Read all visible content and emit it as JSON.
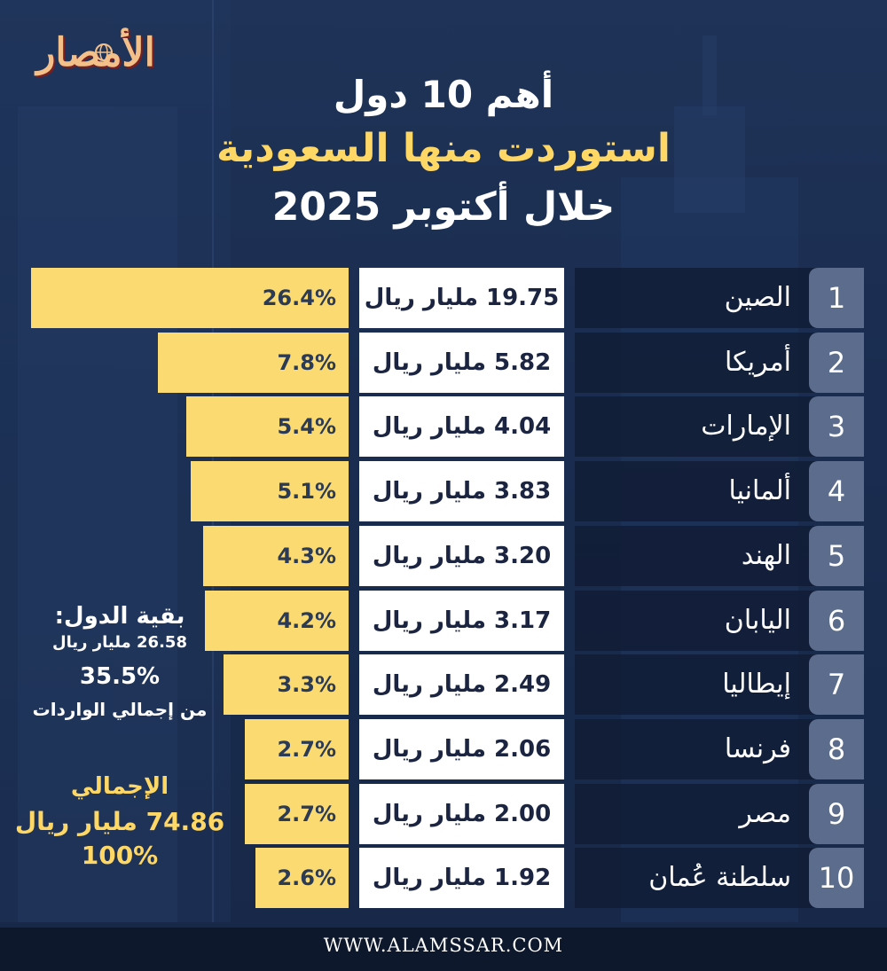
{
  "brand": {
    "logo_text": "الأمصار"
  },
  "title": {
    "line1": "أهم 10 دول",
    "line2": "استوردت منها السعودية",
    "line3": "خلال  أكتوبر 2025"
  },
  "side": {
    "rest_label": "بقية الدول:",
    "rest_value": "26.58 مليار ريال",
    "rest_pct": "35.5%",
    "rest_caption": "من إجمالي الواردات",
    "total_label": "الإجمالي",
    "total_value": "74.86 مليار ريال",
    "total_pct": "100%"
  },
  "footer": {
    "url": "WWW.ALAMSSAR.COM"
  },
  "colors": {
    "bar": "#fbdb71",
    "accent": "#ffd764",
    "background": "#1f3358"
  },
  "chart_data": {
    "type": "bar",
    "title": "أهم 10 دول استوردت منها السعودية خلال أكتوبر 2025",
    "xlabel": "",
    "ylabel": "",
    "ranks": [
      "1",
      "2",
      "3",
      "4",
      "5",
      "6",
      "7",
      "8",
      "9",
      "10"
    ],
    "categories": [
      "الصين",
      "أمريكا",
      "الإمارات",
      "ألمانيا",
      "الهند",
      "اليابان",
      "إيطاليا",
      "فرنسا",
      "مصر",
      "سلطنة عُمان"
    ],
    "value_labels": [
      "19.75 مليار ريال",
      "5.82 مليار ريال",
      "4.04 مليار ريال",
      "3.83 مليار ريال",
      "3.20 مليار ريال",
      "3.17 مليار ريال",
      "2.49 مليار ريال",
      "2.06 مليار ريال",
      "2.00 مليار ريال",
      "1.92 مليار ريال"
    ],
    "values": [
      19.75,
      5.82,
      4.04,
      3.83,
      3.2,
      3.17,
      2.49,
      2.06,
      2.0,
      1.92
    ],
    "unit": "مليار ريال",
    "share_labels": [
      "26.4%",
      "7.8%",
      "5.4%",
      "5.1%",
      "4.3%",
      "4.2%",
      "3.3%",
      "2.7%",
      "2.7%",
      "2.6%"
    ],
    "shares": [
      26.4,
      7.8,
      5.4,
      5.1,
      4.3,
      4.2,
      3.3,
      2.7,
      2.7,
      2.6
    ]
  }
}
